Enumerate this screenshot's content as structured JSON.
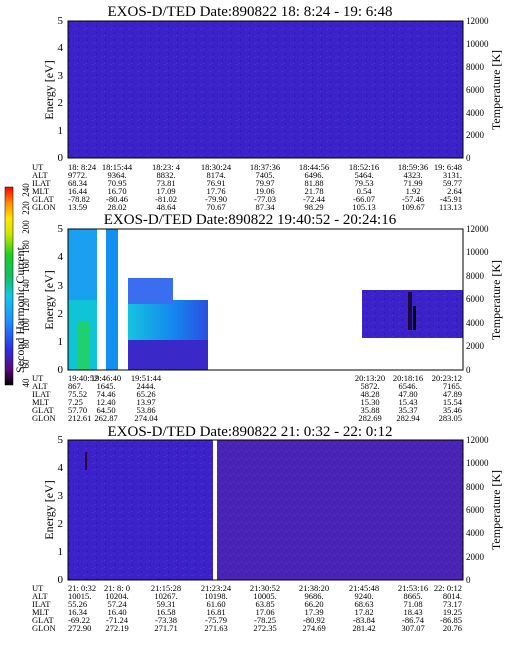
{
  "figure": {
    "colorbar": {
      "label": "Second Harmonic Current",
      "ticks": [
        "40",
        "60",
        "80",
        "100",
        "120",
        "140",
        "160",
        "180",
        "200",
        "220",
        "240"
      ]
    },
    "panels": [
      {
        "title": "EXOS-D/TED   Date:890822  18: 8:24 - 19: 6:48",
        "ylabel": "Energy [eV]",
        "y2label": "Temperature [K]",
        "yticks": [
          "0",
          "1",
          "2",
          "3",
          "4",
          "5"
        ],
        "y2ticks": [
          "0",
          "2000",
          "4000",
          "6000",
          "8000",
          "10000",
          "12000"
        ],
        "meta_labels": [
          "UT",
          "ALT",
          "ILAT",
          "MLT",
          "GLAT",
          "GLON"
        ],
        "meta_columns": [
          [
            "18: 8:24",
            "9772.",
            "68.34",
            "16.44",
            "-78.82",
            "13.59"
          ],
          [
            "18:15:44",
            "9364.",
            "70.95",
            "16.70",
            "-80.46",
            "28.02"
          ],
          [
            "18:23: 4",
            "8832.",
            "73.81",
            "17.09",
            "-81.02",
            "48.64"
          ],
          [
            "18:30:24",
            "8174.",
            "76.91",
            "17.76",
            "-79.90",
            "70.67"
          ],
          [
            "18:37:36",
            "7405.",
            "79.97",
            "19.06",
            "-77.03",
            "87.34"
          ],
          [
            "18:44:56",
            "6496.",
            "81.88",
            "21.78",
            "-72.44",
            "98.29"
          ],
          [
            "18:52:16",
            "5464.",
            "79.53",
            "0.54",
            "-66.07",
            "105.13"
          ],
          [
            "18:59:36",
            "4323.",
            "71.99",
            "1.92",
            "-57.46",
            "109.67"
          ],
          [
            "19: 6:48",
            "3131.",
            "59.77",
            "2.64",
            "-45.91",
            "113.13"
          ]
        ]
      },
      {
        "title": "EXOS-D/TED   Date:890822  19:40:52 - 20:24:16",
        "ylabel": "Energy [eV]",
        "y2label": "Temperature [K]",
        "yticks": [
          "0",
          "1",
          "2",
          "3",
          "4",
          "5"
        ],
        "y2ticks": [
          "0",
          "2000",
          "4000",
          "6000",
          "8000",
          "10000",
          "12000"
        ],
        "meta_labels": [
          "UT",
          "ALT",
          "ILAT",
          "MLT",
          "GLAT",
          "GLON"
        ],
        "meta_columns": [
          [
            "19:40:52",
            "867.",
            "75.52",
            "7.25",
            "57.70",
            "212.61"
          ],
          [
            "19:46:40",
            "1645.",
            "74.46",
            "12.40",
            "64.50",
            "262.87"
          ],
          [
            "19:51:44",
            "2444.",
            "65.26",
            "13.97",
            "53.86",
            "274.04"
          ],
          [
            "20:13:20",
            "5872.",
            "48.28",
            "15.30",
            "35.88",
            "282.69"
          ],
          [
            "20:18:16",
            "6546.",
            "47.80",
            "15.43",
            "35.37",
            "282.94"
          ],
          [
            "20:23:12",
            "7165.",
            "47.89",
            "15.54",
            "35.46",
            "283.05"
          ]
        ]
      },
      {
        "title": "EXOS-D/TED   Date:890822  21: 0:32 - 22: 0:12",
        "ylabel": "Energy [eV]",
        "y2label": "Temperature [K]",
        "yticks": [
          "0",
          "1",
          "2",
          "3",
          "4",
          "5"
        ],
        "y2ticks": [
          "0",
          "2000",
          "4000",
          "6000",
          "8000",
          "10000",
          "12000"
        ],
        "meta_labels": [
          "UT",
          "ALT",
          "ILAT",
          "MLT",
          "GLAT",
          "GLON"
        ],
        "meta_columns": [
          [
            "21: 0:32",
            "10015.",
            "55.26",
            "16.34",
            "-69.22",
            "272.90"
          ],
          [
            "21: 8: 0",
            "10204.",
            "57.24",
            "16.40",
            "-71.24",
            "272.19"
          ],
          [
            "21:15:28",
            "10267.",
            "59.31",
            "16.58",
            "-73.38",
            "271.71"
          ],
          [
            "21:23:24",
            "10198.",
            "61.60",
            "16.81",
            "-75.79",
            "271.63"
          ],
          [
            "21:30:52",
            "10005.",
            "63.85",
            "17.06",
            "-78.25",
            "272.35"
          ],
          [
            "21:38:20",
            "9686.",
            "66.20",
            "17.39",
            "-80.92",
            "274.69"
          ],
          [
            "21:45:48",
            "9240.",
            "68.63",
            "17.82",
            "-83.84",
            "281.42"
          ],
          [
            "21:53:16",
            "8665.",
            "71.08",
            "18.43",
            "-86.74",
            "307.07"
          ],
          [
            "22: 0:12",
            "8014.",
            "73.17",
            "19.25",
            "-86.85",
            "20.76"
          ]
        ]
      }
    ]
  },
  "chart_data": [
    {
      "type": "heatmap",
      "title": "EXOS-D/TED   Date:890822  18: 8:24 - 19: 6:48",
      "ylabel": "Energy [eV]",
      "y2label": "Temperature [K]",
      "ylim": [
        0,
        5
      ],
      "y2lim": [
        0,
        12000
      ],
      "x_labels": [
        "18: 8:24",
        "18:15:44",
        "18:23: 4",
        "18:30:24",
        "18:37:36",
        "18:44:56",
        "18:52:16",
        "18:59:36",
        "19: 6:48"
      ],
      "colorscale_label": "Second Harmonic Current",
      "colorscale_range": [
        40,
        240
      ],
      "regions": [
        {
          "x_range": [
            "18: 8:24",
            "19: 6:48"
          ],
          "y_range": [
            0,
            5
          ],
          "level": 90,
          "pattern": "noise"
        }
      ]
    },
    {
      "type": "heatmap",
      "title": "EXOS-D/TED   Date:890822  19:40:52 - 20:24:16",
      "ylabel": "Energy [eV]",
      "y2label": "Temperature [K]",
      "ylim": [
        0,
        5
      ],
      "y2lim": [
        0,
        12000
      ],
      "x_labels": [
        "19:40:52",
        "19:46:40",
        "19:51:44",
        "20:13:20",
        "20:18:16",
        "20:23:12"
      ],
      "colorscale_label": "Second Harmonic Current",
      "colorscale_range": [
        40,
        240
      ],
      "regions": [
        {
          "x_range": [
            "19:40:52",
            "19:46:40"
          ],
          "y_range": [
            0,
            5
          ],
          "level": 130,
          "pattern": "enhanced"
        },
        {
          "x_range": [
            "19:46:40",
            "19:54:00"
          ],
          "y_range": [
            1.0,
            3.0
          ],
          "level": 140,
          "pattern": "enhanced"
        },
        {
          "x_range": [
            "20:10:40",
            "20:24:16"
          ],
          "y_range": [
            1.3,
            3.4
          ],
          "level": 100,
          "pattern": "noise"
        }
      ],
      "data_gaps": [
        {
          "x_range": [
            "19:54:00",
            "20:10:40"
          ]
        }
      ]
    },
    {
      "type": "heatmap",
      "title": "EXOS-D/TED   Date:890822  21: 0:32 - 22: 0:12",
      "ylabel": "Energy [eV]",
      "y2label": "Temperature [K]",
      "ylim": [
        0,
        5
      ],
      "y2lim": [
        0,
        12000
      ],
      "x_labels": [
        "21: 0:32",
        "21: 8: 0",
        "21:15:28",
        "21:23:24",
        "21:30:52",
        "21:38:20",
        "21:45:48",
        "21:53:16",
        "22: 0:12"
      ],
      "colorscale_label": "Second Harmonic Current",
      "colorscale_range": [
        40,
        240
      ],
      "regions": [
        {
          "x_range": [
            "21: 0:32",
            "21:23:24"
          ],
          "y_range": [
            0,
            5
          ],
          "level": 90,
          "pattern": "noise"
        },
        {
          "x_range": [
            "21:23:24",
            "22: 0:12"
          ],
          "y_range": [
            0,
            5
          ],
          "level": 95,
          "pattern": "speckled"
        }
      ]
    }
  ]
}
